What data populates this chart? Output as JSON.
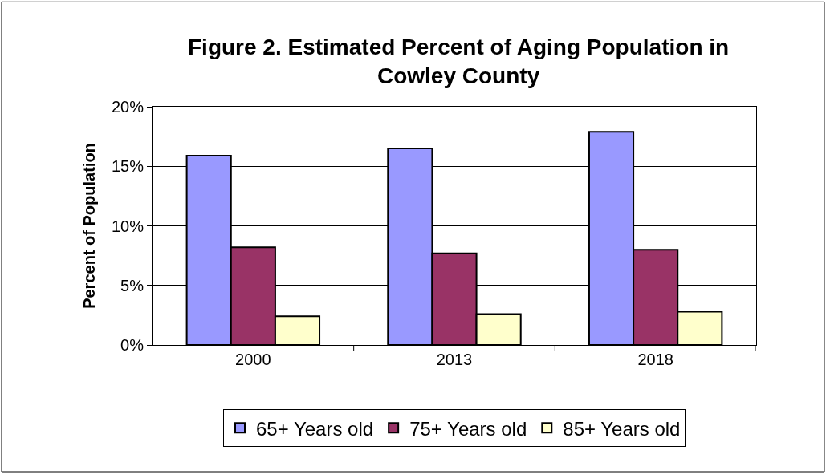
{
  "chart_data": {
    "type": "bar",
    "title": "Figure 2. Estimated Percent of Aging Population in Cowley County",
    "ylabel": "Percent of Population",
    "categories": [
      "2000",
      "2013",
      "2018"
    ],
    "series": [
      {
        "name": "65+ Years old",
        "color": "#9999ff",
        "values": [
          15.9,
          16.5,
          17.9
        ]
      },
      {
        "name": "75+ Years old",
        "color": "#993366",
        "values": [
          8.2,
          7.7,
          8.0
        ]
      },
      {
        "name": "85+ Years old",
        "color": "#ffffcc",
        "values": [
          2.4,
          2.6,
          2.8
        ]
      }
    ],
    "ylim": [
      0,
      20
    ],
    "yticks": [
      {
        "value": 0,
        "label": "0%"
      },
      {
        "value": 5,
        "label": "5%"
      },
      {
        "value": 10,
        "label": "10%"
      },
      {
        "value": 15,
        "label": "15%"
      },
      {
        "value": 20,
        "label": "20%"
      }
    ],
    "grid": "y",
    "legend": "bottom"
  }
}
